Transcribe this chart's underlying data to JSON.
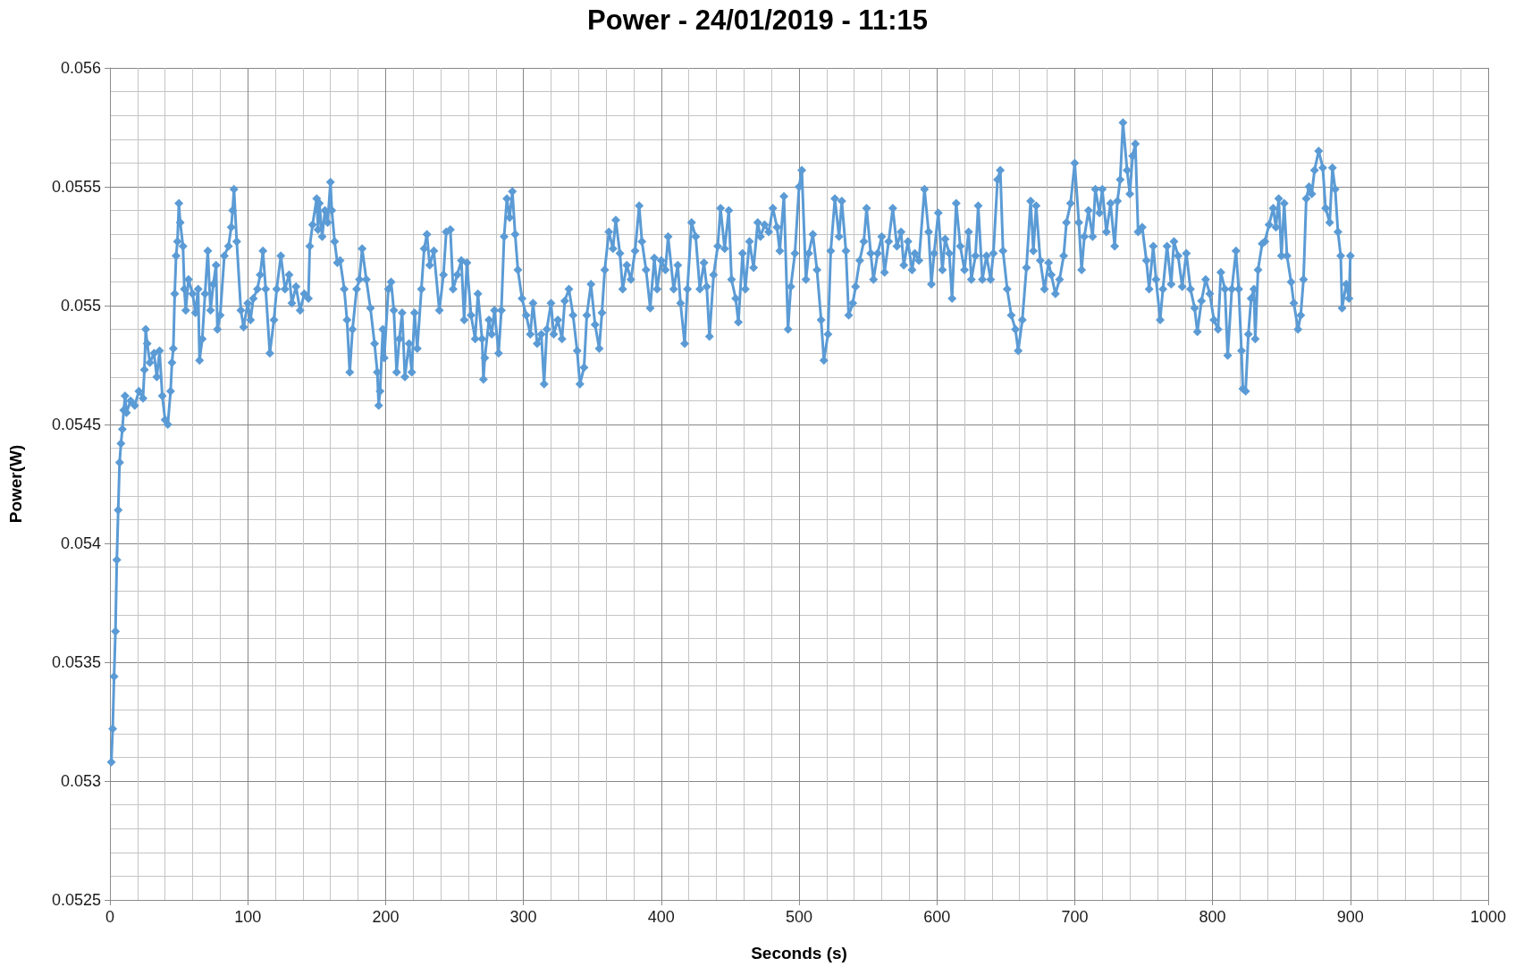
{
  "chart_data": {
    "type": "line",
    "title": "Power - 24/01/2019 - 11:15",
    "xlabel": "Seconds (s)",
    "ylabel": "Power(W)",
    "xlim": [
      0,
      1000
    ],
    "xticks": [
      0,
      100,
      200,
      300,
      400,
      500,
      600,
      700,
      800,
      900,
      1000
    ],
    "ylim": [
      0.0525,
      0.056
    ],
    "yticks": [
      0.0525,
      0.053,
      0.0535,
      0.054,
      0.0545,
      0.055,
      0.0555,
      0.056
    ],
    "grid": true,
    "marker": "diamond",
    "line_style": "solid",
    "series": [
      {
        "color": "#5b9bd5",
        "x": [
          1,
          2,
          3,
          4,
          5,
          6,
          7,
          8,
          9,
          10,
          11,
          12,
          15,
          18,
          21,
          24,
          25,
          26,
          27,
          29,
          32,
          34,
          36,
          38,
          40,
          42,
          44,
          45,
          46,
          47,
          48,
          49,
          50,
          51,
          53,
          54,
          55,
          57,
          60,
          62,
          64,
          65,
          67,
          69,
          71,
          73,
          75,
          77,
          78,
          80,
          83,
          86,
          88,
          89,
          90,
          92,
          95,
          97,
          100,
          102,
          104,
          107,
          109,
          111,
          113,
          116,
          119,
          121,
          124,
          127,
          130,
          132,
          135,
          138,
          141,
          144,
          145,
          147,
          150,
          151,
          152,
          154,
          156,
          158,
          160,
          161,
          163,
          165,
          167,
          170,
          172,
          174,
          176,
          179,
          181,
          183,
          186,
          189,
          192,
          194,
          195,
          196,
          198,
          199,
          202,
          204,
          206,
          208,
          210,
          212,
          214,
          217,
          219,
          221,
          223,
          226,
          228,
          230,
          232,
          235,
          239,
          242,
          244,
          247,
          249,
          252,
          255,
          257,
          259,
          262,
          265,
          267,
          270,
          271,
          272,
          275,
          277,
          279,
          282,
          284,
          286,
          288,
          290,
          292,
          294,
          296,
          299,
          302,
          305,
          307,
          310,
          313,
          315,
          317,
          320,
          322,
          325,
          328,
          330,
          333,
          336,
          339,
          341,
          344,
          346,
          349,
          352,
          355,
          357,
          359,
          362,
          365,
          367,
          370,
          372,
          375,
          378,
          381,
          384,
          386,
          389,
          392,
          395,
          397,
          400,
          403,
          405,
          409,
          412,
          414,
          417,
          419,
          422,
          425,
          428,
          431,
          433,
          435,
          438,
          441,
          443,
          446,
          449,
          451,
          454,
          456,
          459,
          461,
          464,
          467,
          470,
          472,
          475,
          478,
          481,
          484,
          486,
          489,
          492,
          494,
          497,
          500,
          502,
          505,
          507,
          510,
          513,
          516,
          518,
          521,
          523,
          526,
          529,
          531,
          534,
          536,
          539,
          541,
          544,
          547,
          549,
          552,
          554,
          557,
          560,
          562,
          565,
          568,
          571,
          574,
          576,
          579,
          582,
          584,
          587,
          591,
          594,
          596,
          598,
          601,
          604,
          606,
          609,
          611,
          614,
          617,
          620,
          623,
          625,
          628,
          630,
          633,
          636,
          639,
          641,
          644,
          646,
          648,
          651,
          654,
          657,
          659,
          662,
          665,
          668,
          670,
          672,
          675,
          678,
          681,
          683,
          686,
          689,
          692,
          694,
          697,
          700,
          703,
          705,
          707,
          710,
          713,
          715,
          718,
          720,
          723,
          726,
          729,
          731,
          733,
          735,
          738,
          740,
          742,
          744,
          746,
          749,
          752,
          754,
          757,
          759,
          762,
          764,
          767,
          770,
          772,
          775,
          778,
          781,
          784,
          787,
          789,
          792,
          795,
          798,
          801,
          804,
          806,
          809,
          811,
          814,
          817,
          819,
          821,
          822,
          824,
          826,
          828,
          830,
          831,
          833,
          836,
          838,
          841,
          844,
          846,
          848,
          850,
          852,
          854,
          857,
          859,
          862,
          864,
          866,
          868,
          870,
          872,
          874,
          877,
          880,
          882,
          885,
          887,
          889,
          891,
          893,
          894,
          897,
          899,
          900
        ],
        "values": [
          0.05308,
          0.05322,
          0.05344,
          0.05363,
          0.05393,
          0.05414,
          0.05434,
          0.05442,
          0.05448,
          0.05456,
          0.05462,
          0.05455,
          0.0546,
          0.05458,
          0.05464,
          0.05461,
          0.05473,
          0.0549,
          0.05484,
          0.05476,
          0.0548,
          0.0547,
          0.05481,
          0.05462,
          0.05452,
          0.0545,
          0.05464,
          0.05476,
          0.05482,
          0.05505,
          0.05521,
          0.05527,
          0.05543,
          0.05535,
          0.05525,
          0.05507,
          0.05498,
          0.05511,
          0.05505,
          0.05497,
          0.05507,
          0.05477,
          0.05486,
          0.05505,
          0.05523,
          0.05498,
          0.05509,
          0.05517,
          0.0549,
          0.05496,
          0.05521,
          0.05525,
          0.05533,
          0.0554,
          0.05549,
          0.05527,
          0.05498,
          0.05491,
          0.05501,
          0.05494,
          0.05503,
          0.05507,
          0.05513,
          0.05523,
          0.05507,
          0.0548,
          0.05494,
          0.05507,
          0.05521,
          0.05507,
          0.05513,
          0.05501,
          0.05508,
          0.05498,
          0.05505,
          0.05503,
          0.05525,
          0.05534,
          0.05545,
          0.05532,
          0.05543,
          0.05529,
          0.0554,
          0.05535,
          0.05552,
          0.0554,
          0.05527,
          0.05518,
          0.05519,
          0.05507,
          0.05494,
          0.05472,
          0.0549,
          0.05507,
          0.05511,
          0.05524,
          0.05511,
          0.05499,
          0.05484,
          0.05472,
          0.05458,
          0.05464,
          0.0549,
          0.05478,
          0.05507,
          0.0551,
          0.05498,
          0.05472,
          0.05486,
          0.05497,
          0.0547,
          0.05484,
          0.05472,
          0.05497,
          0.05482,
          0.05507,
          0.05524,
          0.0553,
          0.05517,
          0.05523,
          0.05498,
          0.05513,
          0.05531,
          0.05532,
          0.05507,
          0.05513,
          0.05519,
          0.05494,
          0.05518,
          0.05496,
          0.05486,
          0.05505,
          0.05486,
          0.05469,
          0.05478,
          0.05494,
          0.05488,
          0.05498,
          0.0548,
          0.05498,
          0.05529,
          0.05545,
          0.05537,
          0.05548,
          0.0553,
          0.05515,
          0.05503,
          0.05496,
          0.05488,
          0.05501,
          0.05484,
          0.05488,
          0.05467,
          0.0549,
          0.05501,
          0.05488,
          0.05494,
          0.05486,
          0.05502,
          0.05507,
          0.05496,
          0.05481,
          0.05467,
          0.05474,
          0.05496,
          0.05509,
          0.05492,
          0.05482,
          0.05497,
          0.05515,
          0.05531,
          0.05524,
          0.05536,
          0.05522,
          0.05507,
          0.05517,
          0.05511,
          0.05523,
          0.05542,
          0.05527,
          0.05515,
          0.05499,
          0.0552,
          0.05507,
          0.05519,
          0.05515,
          0.05529,
          0.05507,
          0.05517,
          0.05501,
          0.05484,
          0.05507,
          0.05535,
          0.05529,
          0.05507,
          0.05518,
          0.05508,
          0.05487,
          0.05513,
          0.05525,
          0.05541,
          0.05524,
          0.0554,
          0.05511,
          0.05503,
          0.05493,
          0.05522,
          0.05507,
          0.05527,
          0.05516,
          0.05535,
          0.05529,
          0.05534,
          0.05531,
          0.05541,
          0.05533,
          0.05523,
          0.05546,
          0.0549,
          0.05508,
          0.05522,
          0.0555,
          0.05557,
          0.05511,
          0.05522,
          0.0553,
          0.05515,
          0.05494,
          0.05477,
          0.05488,
          0.05523,
          0.05545,
          0.05529,
          0.05544,
          0.05523,
          0.05496,
          0.05501,
          0.05508,
          0.05519,
          0.05527,
          0.05541,
          0.05522,
          0.05511,
          0.05522,
          0.05529,
          0.05514,
          0.05527,
          0.05541,
          0.05525,
          0.05531,
          0.05517,
          0.05527,
          0.05515,
          0.05522,
          0.05519,
          0.05549,
          0.05531,
          0.05509,
          0.05522,
          0.05539,
          0.05515,
          0.05528,
          0.05522,
          0.05503,
          0.05543,
          0.05525,
          0.05515,
          0.05531,
          0.05511,
          0.05521,
          0.05542,
          0.05511,
          0.05521,
          0.05511,
          0.05522,
          0.05553,
          0.05557,
          0.05523,
          0.05507,
          0.05496,
          0.0549,
          0.05481,
          0.05494,
          0.05516,
          0.05544,
          0.05523,
          0.05542,
          0.05519,
          0.05507,
          0.05518,
          0.05513,
          0.05505,
          0.05511,
          0.05521,
          0.05535,
          0.05543,
          0.0556,
          0.05535,
          0.05515,
          0.05529,
          0.0554,
          0.05529,
          0.05549,
          0.05539,
          0.05549,
          0.05531,
          0.05543,
          0.05525,
          0.05544,
          0.05553,
          0.05577,
          0.05557,
          0.05547,
          0.05563,
          0.05568,
          0.05531,
          0.05533,
          0.05519,
          0.05507,
          0.05525,
          0.05511,
          0.05494,
          0.05507,
          0.05525,
          0.05509,
          0.05527,
          0.05521,
          0.05508,
          0.05522,
          0.05507,
          0.05499,
          0.05489,
          0.05502,
          0.05511,
          0.05505,
          0.05494,
          0.0549,
          0.05514,
          0.05507,
          0.05479,
          0.05507,
          0.05523,
          0.05507,
          0.05481,
          0.05465,
          0.05464,
          0.05488,
          0.05503,
          0.05507,
          0.05486,
          0.05515,
          0.05526,
          0.05527,
          0.05534,
          0.05541,
          0.05533,
          0.05545,
          0.05521,
          0.05543,
          0.05521,
          0.0551,
          0.05501,
          0.0549,
          0.05496,
          0.05511,
          0.05545,
          0.0555,
          0.05547,
          0.05557,
          0.05565,
          0.05558,
          0.05541,
          0.05535,
          0.05558,
          0.05549,
          0.05531,
          0.05521,
          0.05499,
          0.05509,
          0.05503,
          0.05521
        ]
      }
    ]
  }
}
